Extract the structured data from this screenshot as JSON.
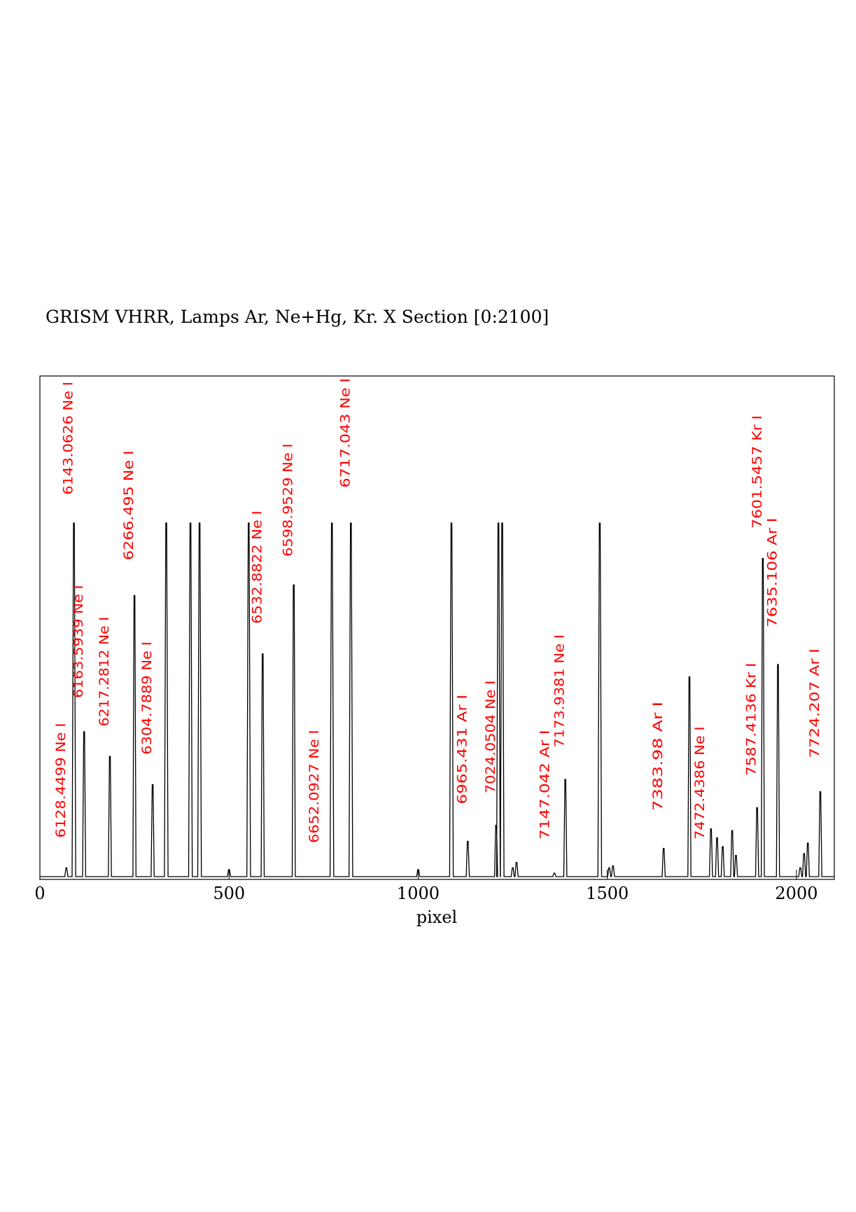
{
  "chart_data": {
    "type": "line",
    "title": "GRISM VHRR, Lamps Ar, Ne+Hg, Kr. X Section [0:2100]",
    "xlabel": "pixel",
    "ylabel": "",
    "xlim": [
      0,
      2100
    ],
    "ylim": [
      0,
      1
    ],
    "x_ticks": [
      0,
      500,
      1000,
      1500,
      2000
    ],
    "grid": false,
    "line_color": "#000000",
    "label_color": "#ff0000",
    "peaks": [
      {
        "x": 70,
        "h": 0.025
      },
      {
        "x": 90,
        "h": 1.0
      },
      {
        "x": 117,
        "h": 0.41
      },
      {
        "x": 185,
        "h": 0.34
      },
      {
        "x": 250,
        "h": 0.795
      },
      {
        "x": 298,
        "h": 0.26
      },
      {
        "x": 334,
        "h": 1.0
      },
      {
        "x": 398,
        "h": 1.0
      },
      {
        "x": 422,
        "h": 1.0
      },
      {
        "x": 500,
        "h": 0.02
      },
      {
        "x": 552,
        "h": 1.0
      },
      {
        "x": 589,
        "h": 0.63
      },
      {
        "x": 671,
        "h": 0.825
      },
      {
        "x": 772,
        "h": 1.0
      },
      {
        "x": 822,
        "h": 1.0
      },
      {
        "x": 1000,
        "h": 0.02
      },
      {
        "x": 1088,
        "h": 1.0
      },
      {
        "x": 1131,
        "h": 0.1
      },
      {
        "x": 1206,
        "h": 0.145
      },
      {
        "x": 1212,
        "h": 1.0
      },
      {
        "x": 1222,
        "h": 1.0
      },
      {
        "x": 1250,
        "h": 0.025
      },
      {
        "x": 1260,
        "h": 0.04
      },
      {
        "x": 1360,
        "h": 0.01
      },
      {
        "x": 1389,
        "h": 0.275
      },
      {
        "x": 1480,
        "h": 1.0
      },
      {
        "x": 1505,
        "h": 0.025
      },
      {
        "x": 1515,
        "h": 0.03
      },
      {
        "x": 1649,
        "h": 0.08
      },
      {
        "x": 1717,
        "h": 0.565
      },
      {
        "x": 1774,
        "h": 0.135
      },
      {
        "x": 1790,
        "h": 0.11
      },
      {
        "x": 1805,
        "h": 0.085
      },
      {
        "x": 1830,
        "h": 0.13
      },
      {
        "x": 1840,
        "h": 0.06
      },
      {
        "x": 1896,
        "h": 0.195
      },
      {
        "x": 1911,
        "h": 0.9
      },
      {
        "x": 1951,
        "h": 0.6
      },
      {
        "x": 2010,
        "h": 0.025
      },
      {
        "x": 2020,
        "h": 0.065
      },
      {
        "x": 2030,
        "h": 0.095
      },
      {
        "x": 2063,
        "h": 0.24
      }
    ],
    "annotations": [
      {
        "text": "6128.4499  Ne I",
        "x": 70,
        "y_top": 0.435,
        "y_bottom": 0.11
      },
      {
        "text": "6143.0626  Ne I",
        "x": 90,
        "y_top": 1.4,
        "y_bottom": 1.08
      },
      {
        "text": "6163.5939  Ne I",
        "x": 117,
        "y_top": 0.825,
        "y_bottom": 0.505
      },
      {
        "text": "6217.2812  Ne I",
        "x": 185,
        "y_top": 0.735,
        "y_bottom": 0.425
      },
      {
        "text": "6266.495  Ne I",
        "x": 250,
        "y_top": 1.205,
        "y_bottom": 0.895
      },
      {
        "text": "6304.7889  Ne I",
        "x": 298,
        "y_top": 0.665,
        "y_bottom": 0.345
      },
      {
        "text": "6532.8822  Ne I",
        "x": 589,
        "y_top": 1.035,
        "y_bottom": 0.715
      },
      {
        "text": "6598.9529  Ne I",
        "x": 671,
        "y_top": 1.225,
        "y_bottom": 0.905
      },
      {
        "text": "6652.0927  Ne I",
        "x": 740,
        "y_top": 0.415,
        "y_bottom": 0.095
      },
      {
        "text": "6717.043  Ne I",
        "x": 822,
        "y_top": 1.41,
        "y_bottom": 1.1
      },
      {
        "text": "6965.431  Ar I",
        "x": 1131,
        "y_top": 0.515,
        "y_bottom": 0.205
      },
      {
        "text": "7024.0504  Ne I",
        "x": 1206,
        "y_top": 0.555,
        "y_bottom": 0.235
      },
      {
        "text": "7147.042  Ar I",
        "x": 1350,
        "y_top": 0.415,
        "y_bottom": 0.105
      },
      {
        "text": "7173.9381  Ne I",
        "x": 1389,
        "y_top": 0.685,
        "y_bottom": 0.365
      },
      {
        "text": "7383.98  Ar I",
        "x": 1649,
        "y_top": 0.495,
        "y_bottom": 0.185
      },
      {
        "text": "7472.4386  Ne I",
        "x": 1760,
        "y_top": 0.425,
        "y_bottom": 0.105
      },
      {
        "text": "7587.4136  Kr I",
        "x": 1896,
        "y_top": 0.605,
        "y_bottom": 0.285
      },
      {
        "text": "7601.5457  Kr I",
        "x": 1911,
        "y_top": 1.305,
        "y_bottom": 0.985
      },
      {
        "text": "7635.106  Ar I",
        "x": 1951,
        "y_top": 1.015,
        "y_bottom": 0.705
      },
      {
        "text": "7724.207  Ar I",
        "x": 2063,
        "y_top": 0.645,
        "y_bottom": 0.335
      }
    ]
  }
}
